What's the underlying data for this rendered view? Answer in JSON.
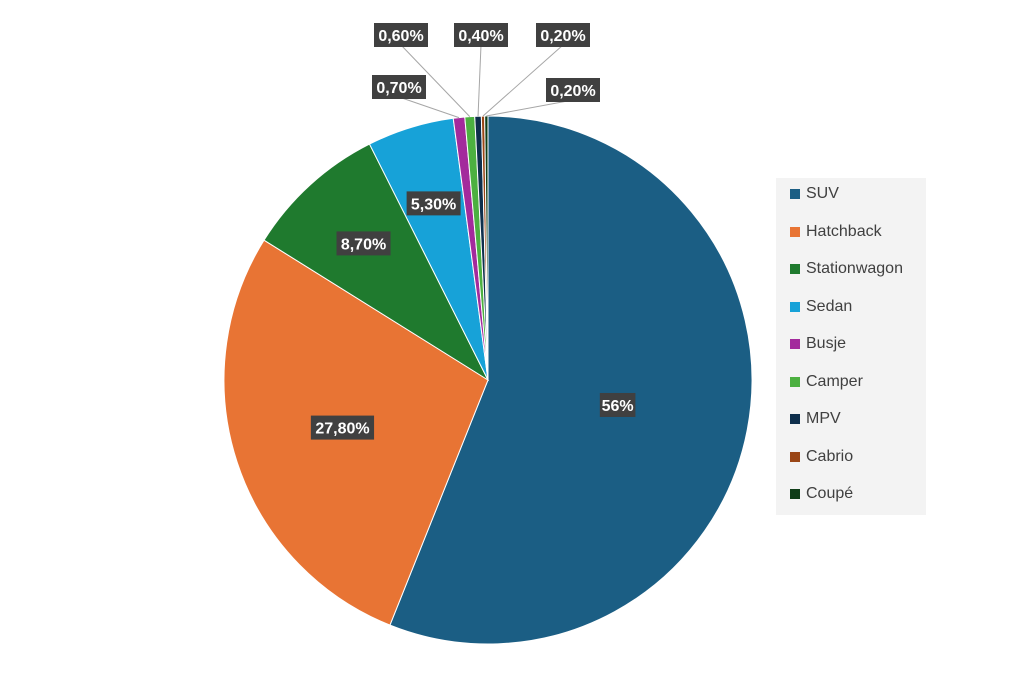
{
  "chart_data": {
    "type": "pie",
    "legend_position": "right",
    "slices": [
      {
        "name": "SUV",
        "value": 56,
        "label": "56%",
        "color": "#1b5e84"
      },
      {
        "name": "Hatchback",
        "value": 27.8,
        "label": "27,80%",
        "color": "#e87434"
      },
      {
        "name": "Stationwagon",
        "value": 8.7,
        "label": "8,70%",
        "color": "#1f7a2e"
      },
      {
        "name": "Sedan",
        "value": 5.3,
        "label": "5,30%",
        "color": "#17a2d8"
      },
      {
        "name": "Busje",
        "value": 0.7,
        "label": "0,70%",
        "color": "#a32a9c"
      },
      {
        "name": "Camper",
        "value": 0.6,
        "label": "0,60%",
        "color": "#4cb040"
      },
      {
        "name": "MPV",
        "value": 0.4,
        "label": "0,40%",
        "color": "#0e2f4c"
      },
      {
        "name": "Cabrio",
        "value": 0.2,
        "label": "0,20%",
        "color": "#9a4616"
      },
      {
        "name": "Coupé",
        "value": 0.2,
        "label": "0,20%",
        "color": "#0f3d18"
      }
    ]
  }
}
